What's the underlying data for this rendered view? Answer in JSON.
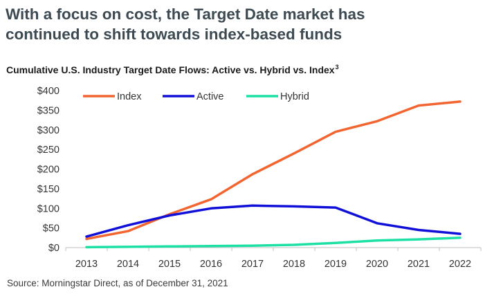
{
  "headline": {
    "line1": "With a focus on cost, the Target Date market has",
    "line2": "continued to shift towards index-based funds"
  },
  "source": "Source: Morningstar Direct, as of December 31, 2021",
  "colors": {
    "index": "#f26531",
    "active": "#1010d8",
    "hybrid": "#1de0a4",
    "axis": "#bfbfbf",
    "text": "#333333"
  },
  "chart_data": {
    "type": "line",
    "title": "Cumulative U.S. Industry Target Date Flows: Active vs. Hybrid vs.  Index",
    "title_superscript": "3",
    "xlabel": "",
    "ylabel": "",
    "x": [
      "2013",
      "2014",
      "2015",
      "2016",
      "2017",
      "2018",
      "2019",
      "2020",
      "2021",
      "2022"
    ],
    "ylim": [
      0,
      400
    ],
    "ytick_labels": [
      "$0",
      "$50",
      "$100",
      "$150",
      "$200",
      "$250",
      "$300",
      "$350",
      "$400"
    ],
    "grid": false,
    "legend_position": "top-left",
    "series": [
      {
        "name": "Index",
        "color": "#f26531",
        "values": [
          22,
          42,
          85,
          123,
          187,
          240,
          295,
          322,
          362,
          372
        ]
      },
      {
        "name": "Active",
        "color": "#1010d8",
        "values": [
          28,
          57,
          82,
          100,
          107,
          105,
          102,
          62,
          45,
          35
        ]
      },
      {
        "name": "Hybrid",
        "color": "#1de0a4",
        "values": [
          1,
          2,
          3,
          4,
          5,
          7,
          12,
          18,
          21,
          25
        ]
      }
    ]
  }
}
